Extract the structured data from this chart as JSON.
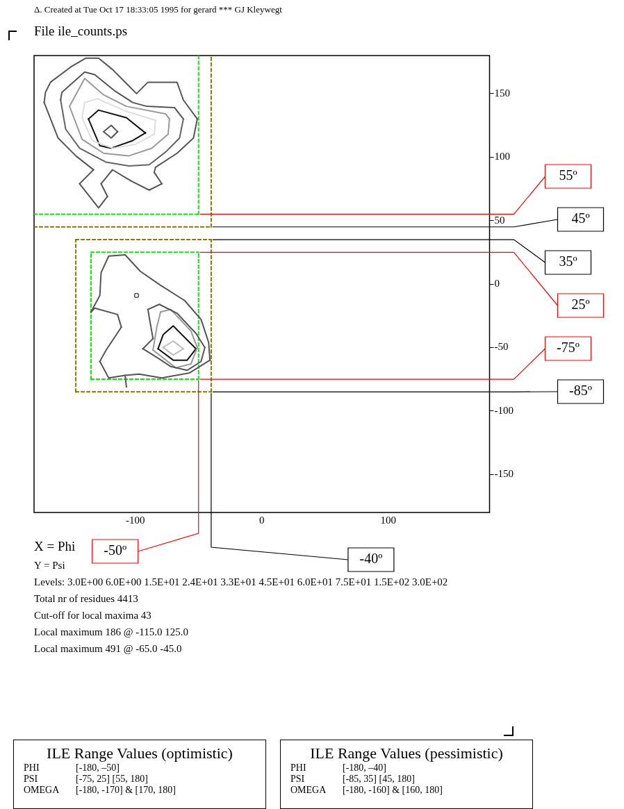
{
  "chart_data": {
    "type": "line",
    "subtitle": "Δ. Created at Tue Oct 17 18:33:05 1995 for gerard *** GJ Kleywegt",
    "title": "File ile_counts.ps",
    "xlabel": "X = Phi",
    "xlim": [
      -180,
      180
    ],
    "ylim": [
      -180,
      180
    ],
    "xticks": [
      -100,
      0,
      100
    ],
    "yticks": [
      -150,
      -100,
      -50,
      0,
      50,
      100,
      150
    ],
    "grid": false,
    "legend": false,
    "marker": "none",
    "series": [
      {
        "color": "#555555",
        "x": [
          -172,
          -171,
          -167,
          -151,
          -139,
          -129,
          -118,
          -107,
          -99,
          -90,
          -67,
          -62,
          -51
        ],
        "values": [
          143,
          151,
          159,
          171,
          178,
          178,
          169,
          158,
          150,
          159,
          159,
          145,
          130
        ]
      },
      {
        "color": "#555555",
        "x": [
          -85,
          -84,
          -67,
          -54,
          -51
        ],
        "values": [
          88,
          92,
          103,
          115,
          130
        ]
      },
      {
        "color": "#555555",
        "x": [
          -85,
          -79
        ],
        "values": [
          88,
          79
        ]
      },
      {
        "color": "#555555",
        "x": [
          -127,
          -118,
          -103,
          -89,
          -79
        ],
        "values": [
          79,
          90,
          81,
          74,
          79
        ]
      },
      {
        "color": "#555555",
        "x": [
          -127,
          -122
        ],
        "values": [
          79,
          69
        ]
      },
      {
        "color": "#555555",
        "x": [
          -144,
          -129,
          -122
        ],
        "values": [
          79,
          60,
          69
        ]
      },
      {
        "color": "#555555",
        "x": [
          -144,
          -133
        ],
        "values": [
          79,
          90
        ]
      },
      {
        "color": "#555555",
        "x": [
          -172,
          -161,
          -147,
          -133
        ],
        "values": [
          143,
          115,
          101,
          90
        ]
      },
      {
        "color": "#555555",
        "x": [
          -159,
          -158,
          -140,
          -132,
          -116,
          -102,
          -91,
          -69,
          -62
        ],
        "values": [
          145,
          151,
          167,
          165,
          152,
          143,
          140,
          139,
          130
        ]
      },
      {
        "color": "#646464",
        "x": [
          -159,
          -155,
          -144,
          -123,
          -105,
          -89,
          -76,
          -65,
          -62
        ],
        "values": [
          145,
          122,
          107,
          96,
          93,
          94,
          104,
          115,
          130
        ]
      },
      {
        "color": "#999999",
        "x": [
          -152,
          -140,
          -125,
          -107,
          -76,
          -73
        ],
        "values": [
          140,
          162,
          149,
          140,
          134,
          130
        ]
      },
      {
        "color": "#999999",
        "x": [
          -152,
          -142,
          -125,
          -105,
          -87,
          -74,
          -73
        ],
        "values": [
          140,
          114,
          103,
          101,
          107,
          118,
          130
        ]
      },
      {
        "color": "#dddddd",
        "x": [
          -142,
          -140,
          -130,
          -107,
          -84
        ],
        "values": [
          131,
          143,
          146,
          136,
          129
        ]
      },
      {
        "color": "#dddddd",
        "x": [
          -142,
          -134,
          -118,
          -100,
          -85,
          -84
        ],
        "values": [
          131,
          113,
          107,
          110,
          118,
          129
        ]
      },
      {
        "color": "#111111",
        "x": [
          -137,
          -129,
          -107,
          -92
        ],
        "values": [
          130,
          137,
          131,
          119
        ]
      },
      {
        "color": "#111111",
        "x": [
          -137,
          -128,
          -119,
          -102,
          -92
        ],
        "values": [
          130,
          109,
          107,
          113,
          119
        ]
      },
      {
        "color": "#555555",
        "x": [
          -125,
          -119,
          -114
        ],
        "values": [
          120,
          125,
          120
        ]
      },
      {
        "color": "#555555",
        "x": [
          -125,
          -119,
          -114
        ],
        "values": [
          120,
          115,
          120
        ]
      },
      {
        "color": "#555555",
        "x": [
          -135,
          -128,
          -127,
          -121,
          -108,
          -96,
          -80,
          -61,
          -48,
          -42,
          -41
        ],
        "values": [
          -22,
          -9,
          9,
          22,
          23,
          10,
          -1,
          -13,
          -28,
          -46,
          -60
        ]
      },
      {
        "color": "#555555",
        "x": [
          -128,
          -121,
          -108,
          -97,
          -79,
          -57,
          -41
        ],
        "values": [
          -61,
          -74,
          -72,
          -71,
          -74,
          -70,
          -60
        ]
      },
      {
        "color": "#555555",
        "x": [
          -128,
          -123,
          -111
        ],
        "values": [
          -61,
          -52,
          -34
        ]
      },
      {
        "color": "#555555",
        "x": [
          -135,
          -132,
          -114,
          -111
        ],
        "values": [
          -22,
          -19,
          -24,
          -34
        ]
      },
      {
        "color": "#555555",
        "x": [
          -108,
          -107
        ],
        "values": [
          -72,
          -81
        ]
      },
      {
        "color": "#555555",
        "x": [
          -90,
          -81,
          -67,
          -52,
          -45
        ],
        "values": [
          -20,
          -16,
          -23,
          -39,
          -50
        ]
      },
      {
        "color": "#555555",
        "x": [
          -94,
          -81,
          -72,
          -59,
          -48,
          -45
        ],
        "values": [
          -51,
          -59,
          -65,
          -68,
          -61,
          -50
        ]
      },
      {
        "color": "#555555",
        "x": [
          -94,
          -86
        ],
        "values": [
          -51,
          -43
        ]
      },
      {
        "color": "#555555",
        "x": [
          -90,
          -89,
          -86
        ],
        "values": [
          -20,
          -26,
          -43
        ]
      },
      {
        "color": "#999999",
        "x": [
          -80,
          -72,
          -56,
          -51
        ],
        "values": [
          -22,
          -20,
          -37,
          -50
        ]
      },
      {
        "color": "#999999",
        "x": [
          -86,
          -68,
          -56,
          -51
        ],
        "values": [
          -52,
          -66,
          -63,
          -50
        ]
      },
      {
        "color": "#999999",
        "x": [
          -86,
          -83,
          -80
        ],
        "values": [
          -52,
          -34,
          -22
        ]
      },
      {
        "color": "#111111",
        "x": [
          -82,
          -78,
          -70,
          -52
        ],
        "values": [
          -51,
          -40,
          -33,
          -51
        ]
      },
      {
        "color": "#111111",
        "x": [
          -82,
          -70,
          -59,
          -52
        ],
        "values": [
          -51,
          -60,
          -60,
          -51
        ]
      },
      {
        "color": "#bbbbbb",
        "x": [
          -78,
          -70,
          -62
        ],
        "values": [
          -50,
          -45,
          -51
        ]
      },
      {
        "color": "#bbbbbb",
        "x": [
          -78,
          -70,
          -62
        ],
        "values": [
          -50,
          -56,
          -51
        ]
      },
      {
        "type": "scatter",
        "marker": "circle",
        "color": "#555555",
        "x": [
          -99
        ],
        "values": [
          -9
        ]
      },
      {
        "color": "#00ee00",
        "line_style": "dashed",
        "x": [
          -180,
          -50
        ],
        "values": [
          55,
          55
        ]
      },
      {
        "color": "#00ee00",
        "line_style": "dashed",
        "x": [
          -50,
          -50
        ],
        "values": [
          55,
          180
        ]
      },
      {
        "color": "#8b7500",
        "line_style": "dashed",
        "x": [
          -180,
          -40
        ],
        "values": [
          45,
          45
        ]
      },
      {
        "color": "#8b7500",
        "line_style": "dashed",
        "x": [
          -40,
          -40
        ],
        "values": [
          45,
          180
        ]
      },
      {
        "color": "#00ee00",
        "line_style": "dashed",
        "x": [
          -135,
          -50
        ],
        "values": [
          25,
          25
        ]
      },
      {
        "color": "#00ee00",
        "line_style": "dashed",
        "x": [
          -135,
          -50
        ],
        "values": [
          -75,
          -75
        ]
      },
      {
        "color": "#00ee00",
        "line_style": "dashed",
        "x": [
          -135,
          -135
        ],
        "values": [
          -75,
          25
        ]
      },
      {
        "color": "#00ee00",
        "line_style": "dashed",
        "x": [
          -50,
          -50
        ],
        "values": [
          -75,
          25
        ]
      },
      {
        "color": "#8b7500",
        "line_style": "dashed",
        "x": [
          -147,
          -40
        ],
        "values": [
          35,
          35
        ]
      },
      {
        "color": "#8b7500",
        "line_style": "dashed",
        "x": [
          -147,
          -40
        ],
        "values": [
          -85,
          -85
        ]
      },
      {
        "color": "#8b7500",
        "line_style": "dashed",
        "x": [
          -147,
          -147
        ],
        "values": [
          -85,
          35
        ]
      },
      {
        "color": "#8b7500",
        "line_style": "dashed",
        "x": [
          -40,
          -40
        ],
        "values": [
          -85,
          35
        ]
      }
    ],
    "ref_lines": [
      {
        "axis": "y",
        "value": 55,
        "label": "55º",
        "color": "#ff0000"
      },
      {
        "axis": "y",
        "value": 45,
        "label": "45º",
        "color": "#000000"
      },
      {
        "axis": "y",
        "value": 35,
        "label": "35º",
        "color": "#000000"
      },
      {
        "axis": "y",
        "value": 25,
        "label": "25º",
        "color": "#ff0000"
      },
      {
        "axis": "y",
        "value": -75,
        "label": "-75º",
        "color": "#ff0000"
      },
      {
        "axis": "y",
        "value": -85,
        "label": "-85º",
        "color": "#000000"
      },
      {
        "axis": "x",
        "value": -50,
        "label": "-50º",
        "color": "#ff0000"
      },
      {
        "axis": "x",
        "value": -40,
        "label": "-40º",
        "color": "#000000"
      }
    ],
    "annotations": [
      "Y = Psi",
      "Levels: 3.0E+00 6.0E+00 1.5E+01 2.4E+01 3.3E+01 4.5E+01 6.0E+01 7.5E+01 1.5E+02 3.0E+02",
      "Total nr of residues 4413",
      "Cut-off for local maxima 43",
      "Local maximum 186 @ -115.0 125.0",
      "Local maximum 491 @ -65.0 -45.0",
      "ILE Range Values (optimistic)",
      "PHI\t[-180, –50]",
      "PSI\t[-75, 25] [55, 180]",
      "OMEGA\t[-180, -170] & [170, 180]",
      "ILE Range Values (pessimistic)",
      "PHI\t[-180, –40]",
      "PSI\t[-85, 35] [45, 180]",
      "OMEGA\t[-180, -160] & [160, 180]"
    ]
  }
}
